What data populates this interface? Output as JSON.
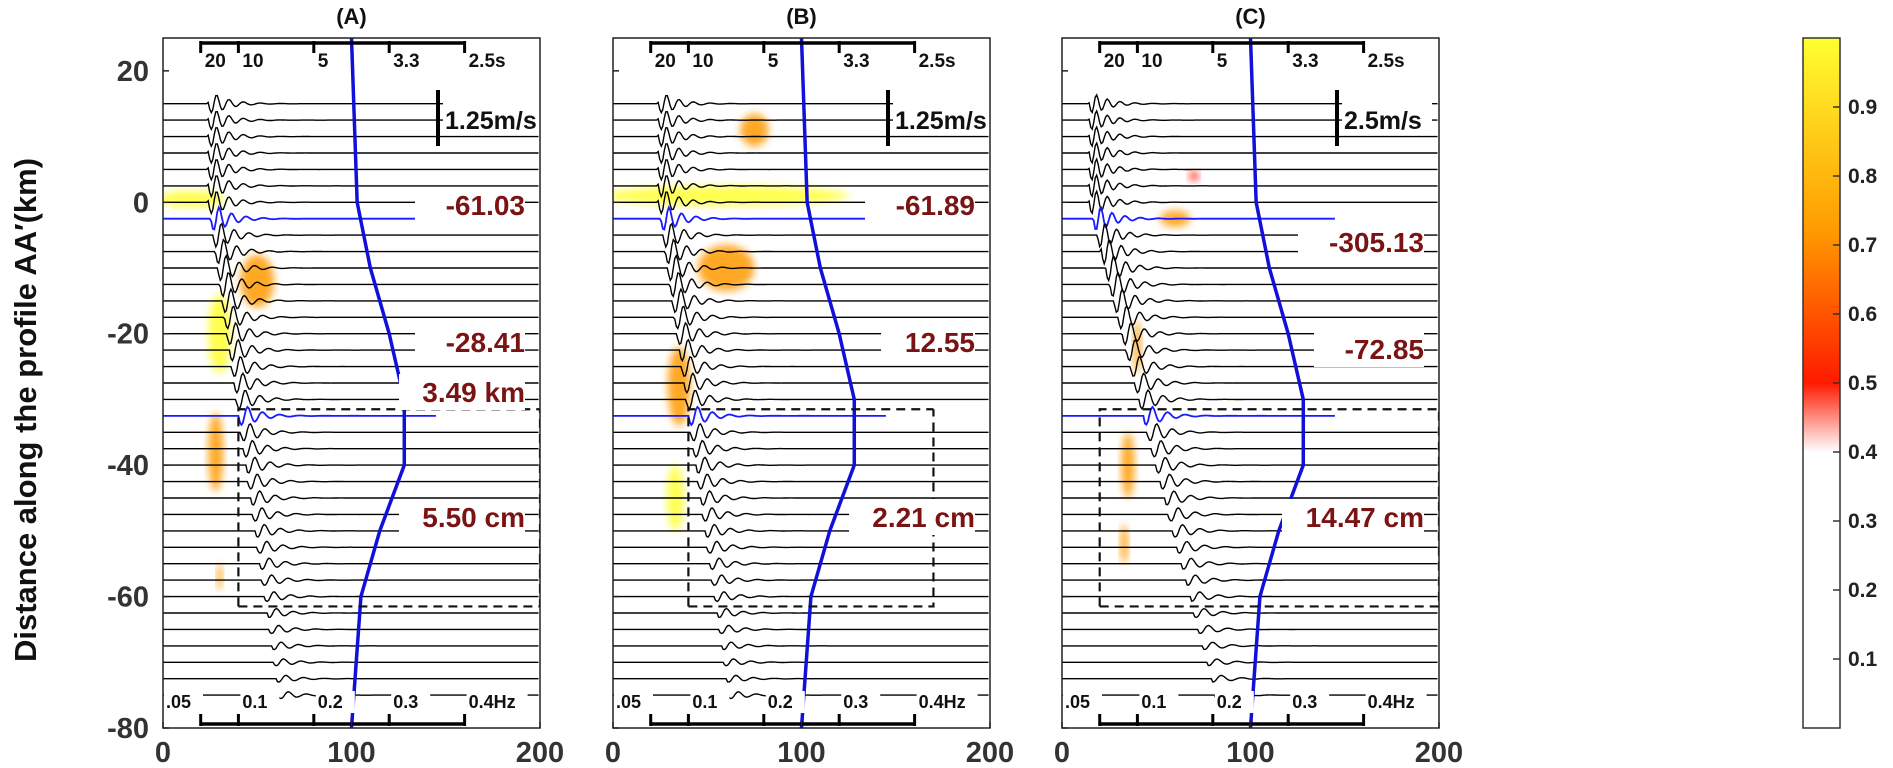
{
  "chart_data": {
    "type": "heatmap",
    "ylabel": "Distance along the profile AA′(km)",
    "ylim": [
      -80,
      25
    ],
    "xlim": [
      0,
      200
    ],
    "yticks": [
      20,
      0,
      -20,
      -40,
      -60,
      -80
    ],
    "xticks": [
      0,
      100,
      200
    ],
    "trace_spacing_km": 2.5,
    "top_axis": {
      "labels": [
        "20",
        "10",
        "5",
        "3.3",
        "2.5s"
      ],
      "positions": [
        20,
        40,
        80,
        120,
        160
      ]
    },
    "bottom_axis": {
      "labels": [
        ".05",
        "0.1",
        "0.2",
        "0.3",
        "0.4Hz"
      ],
      "positions": [
        20,
        40,
        80,
        120,
        160
      ]
    },
    "colorbar": {
      "ticks": [
        "0.1",
        "0.2",
        "0.3",
        "0.4",
        "0.5",
        "0.6",
        "0.7",
        "0.8",
        "0.9"
      ],
      "range": [
        0,
        1
      ]
    },
    "panels": [
      {
        "title": "(A)",
        "scale_bar": "1.25m/s",
        "annotations": [
          "-61.03",
          "-28.41",
          "3.49 km",
          "5.50 cm"
        ],
        "highlight_traces_km": [
          -2.5,
          -32.5
        ],
        "box": {
          "x0": 40,
          "x1": 200,
          "y0": -61.5,
          "y1": -31.5
        },
        "blobs": [
          {
            "x": 15,
            "y": 0.5,
            "w": 35,
            "h": 2.5,
            "v": 0.8
          },
          {
            "x": 30,
            "y": -20,
            "w": 12,
            "h": 12,
            "v": 0.8
          },
          {
            "x": 50,
            "y": -12,
            "w": 18,
            "h": 8,
            "v": 0.7
          },
          {
            "x": 28,
            "y": -38,
            "w": 8,
            "h": 12,
            "v": 0.6
          },
          {
            "x": 30,
            "y": -57,
            "w": 3,
            "h": 4,
            "v": 0.6
          }
        ],
        "envelope": [
          [
            100,
            -80
          ],
          [
            105,
            -60
          ],
          [
            115,
            -50
          ],
          [
            128,
            -40
          ],
          [
            128,
            -30
          ],
          [
            120,
            -20
          ],
          [
            110,
            -10
          ],
          [
            103,
            0
          ],
          [
            100,
            25
          ]
        ]
      },
      {
        "title": "(B)",
        "scale_bar": "1.25m/s",
        "annotations": [
          "-61.89",
          "12.55",
          "2.21 cm"
        ],
        "highlight_traces_km": [
          -2.5,
          -32.5
        ],
        "box": {
          "x0": 40,
          "x1": 170,
          "y0": -61.5,
          "y1": -31.5
        },
        "blobs": [
          {
            "x": 60,
            "y": 1.0,
            "w": 130,
            "h": 3,
            "v": 0.85
          },
          {
            "x": 60,
            "y": -10,
            "w": 30,
            "h": 7,
            "v": 0.65
          },
          {
            "x": 75,
            "y": 11,
            "w": 15,
            "h": 5,
            "v": 0.6
          },
          {
            "x": 35,
            "y": -28,
            "w": 12,
            "h": 12,
            "v": 0.65
          },
          {
            "x": 33,
            "y": -45,
            "w": 9,
            "h": 10,
            "v": 0.75
          }
        ],
        "envelope": [
          [
            100,
            -80
          ],
          [
            105,
            -60
          ],
          [
            115,
            -50
          ],
          [
            128,
            -40
          ],
          [
            128,
            -30
          ],
          [
            120,
            -20
          ],
          [
            110,
            -10
          ],
          [
            103,
            0
          ],
          [
            100,
            25
          ]
        ]
      },
      {
        "title": "(C)",
        "scale_bar": "2.5m/s",
        "annotations": [
          "-305.13",
          "-72.85",
          "14.47 cm"
        ],
        "highlight_traces_km": [
          -2.5,
          -32.5
        ],
        "box": {
          "x0": 20,
          "x1": 200,
          "y0": -61.5,
          "y1": -31.5
        },
        "blobs": [
          {
            "x": 60,
            "y": -2.5,
            "w": 16,
            "h": 2.5,
            "v": 0.55
          },
          {
            "x": 70,
            "y": 4,
            "w": 5,
            "h": 1.5,
            "v": 0.45
          },
          {
            "x": 40,
            "y": -22,
            "w": 4,
            "h": 8,
            "v": 0.5
          },
          {
            "x": 35,
            "y": -40,
            "w": 7,
            "h": 10,
            "v": 0.7
          },
          {
            "x": 33,
            "y": -52,
            "w": 4,
            "h": 6,
            "v": 0.6
          }
        ],
        "envelope": [
          [
            100,
            -80
          ],
          [
            105,
            -60
          ],
          [
            115,
            -50
          ],
          [
            128,
            -40
          ],
          [
            128,
            -30
          ],
          [
            120,
            -20
          ],
          [
            110,
            -10
          ],
          [
            103,
            0
          ],
          [
            100,
            25
          ]
        ]
      }
    ]
  },
  "colors": {
    "trace": "#000000",
    "highlight_trace": "#1a1aff",
    "envelope": "#1010d8",
    "annotation": "#7a1414",
    "colormap": [
      "#ffffff",
      "#ff1a00",
      "#ff9a00",
      "#ffff30"
    ]
  }
}
